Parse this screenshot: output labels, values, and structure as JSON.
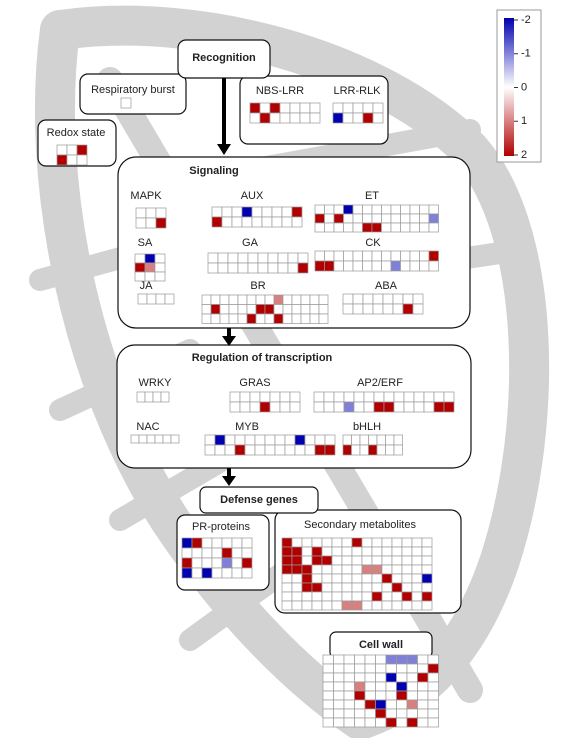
{
  "legend": {
    "ticks": [
      -2,
      -1,
      0,
      1,
      2
    ]
  },
  "headers": [
    "Recognition",
    "Signaling",
    "Regulation of transcription",
    "Defense genes",
    "Cell wall"
  ],
  "modules": [
    {
      "label": "Respiratory burst",
      "cells": [
        [
          0
        ]
      ]
    },
    {
      "label": "NBS-LRR",
      "cells": [
        [
          2,
          0,
          2,
          0,
          0,
          0,
          0
        ],
        [
          0,
          2,
          0,
          0,
          0,
          0,
          0
        ]
      ]
    },
    {
      "label": "LRR-RLK",
      "cells": [
        [
          0,
          0,
          0,
          0,
          0
        ],
        [
          -2,
          0,
          0,
          2,
          0
        ]
      ]
    },
    {
      "label": "Redox state",
      "cells": [
        [
          0,
          0,
          2
        ],
        [
          2,
          0,
          0
        ]
      ]
    },
    {
      "label": "MAPK",
      "cells": [
        [
          0,
          0,
          0
        ],
        [
          0,
          0,
          2
        ]
      ]
    },
    {
      "label": "AUX",
      "cells": [
        [
          0,
          0,
          0,
          -2,
          0,
          0,
          0,
          0,
          2
        ],
        [
          2,
          0,
          0,
          0,
          0,
          0,
          0,
          0,
          0
        ]
      ]
    },
    {
      "label": "ET",
      "cells": [
        [
          0,
          0,
          0,
          -2,
          0,
          0,
          0,
          0,
          0,
          0,
          0,
          0,
          0
        ],
        [
          2,
          0,
          2,
          0,
          0,
          0,
          0,
          0,
          0,
          0,
          0,
          0,
          -1
        ],
        [
          0,
          0,
          0,
          0,
          0,
          2,
          2,
          0,
          0,
          0,
          0,
          0,
          0
        ]
      ]
    },
    {
      "label": "SA",
      "cells": [
        [
          0,
          -2,
          0
        ],
        [
          2,
          1,
          0
        ],
        [
          0,
          0,
          0
        ]
      ]
    },
    {
      "label": "GA",
      "cells": [
        [
          0,
          0,
          0,
          0,
          0,
          0,
          0,
          0,
          0,
          0
        ],
        [
          0,
          0,
          0,
          0,
          0,
          0,
          0,
          0,
          0,
          2
        ]
      ]
    },
    {
      "label": "CK",
      "cells": [
        [
          0,
          0,
          0,
          0,
          0,
          0,
          0,
          0,
          0,
          0,
          0,
          0,
          2
        ],
        [
          2,
          2,
          0,
          0,
          0,
          0,
          0,
          0,
          -1,
          0,
          0,
          0,
          0
        ]
      ]
    },
    {
      "label": "JA",
      "cells": [
        [
          0,
          0,
          0,
          0
        ]
      ]
    },
    {
      "label": "BR",
      "cells": [
        [
          0,
          0,
          0,
          0,
          0,
          0,
          0,
          0,
          1,
          0,
          0,
          0,
          0,
          0
        ],
        [
          0,
          2,
          0,
          0,
          0,
          0,
          2,
          2,
          0,
          0,
          0,
          0,
          0,
          0
        ],
        [
          0,
          0,
          0,
          0,
          0,
          2,
          0,
          0,
          2,
          0,
          0,
          0,
          0,
          0
        ]
      ]
    },
    {
      "label": "ABA",
      "cells": [
        [
          0,
          0,
          0,
          0,
          0,
          0,
          0,
          0
        ],
        [
          0,
          0,
          0,
          0,
          0,
          0,
          2,
          0
        ]
      ]
    },
    {
      "label": "WRKY",
      "cells": [
        [
          0,
          0,
          0,
          0
        ]
      ]
    },
    {
      "label": "GRAS",
      "cells": [
        [
          0,
          0,
          0,
          0,
          0,
          0,
          0
        ],
        [
          0,
          0,
          0,
          2,
          0,
          0,
          0
        ]
      ]
    },
    {
      "label": "AP2/ERF",
      "cells": [
        [
          0,
          0,
          0,
          0,
          0,
          0,
          0,
          0,
          0,
          0,
          0,
          0,
          0,
          0
        ],
        [
          0,
          0,
          0,
          -1,
          0,
          0,
          2,
          2,
          0,
          0,
          0,
          0,
          2,
          2
        ]
      ]
    },
    {
      "label": "NAC",
      "cells": [
        [
          0,
          0,
          0,
          0,
          0,
          0
        ]
      ]
    },
    {
      "label": "MYB",
      "cells": [
        [
          0,
          -2,
          0,
          0,
          0,
          0,
          0,
          0,
          0,
          -2,
          0,
          0,
          0
        ],
        [
          0,
          0,
          0,
          2,
          0,
          0,
          0,
          0,
          0,
          0,
          0,
          2,
          2
        ]
      ]
    },
    {
      "label": "bHLH",
      "cells": [
        [
          0,
          0,
          0,
          0,
          0,
          0,
          0
        ],
        [
          2,
          0,
          0,
          2,
          0,
          0,
          0
        ]
      ]
    },
    {
      "label": "PR-proteins",
      "cells": [
        [
          -2,
          2,
          0,
          0,
          0,
          0,
          0
        ],
        [
          0,
          0,
          0,
          0,
          2,
          0,
          0
        ],
        [
          2,
          0,
          0,
          0,
          -1,
          0,
          2
        ],
        [
          -2,
          0,
          -2,
          0,
          0,
          0,
          0
        ]
      ]
    },
    {
      "label": "Secondary metabolites",
      "cells": [
        [
          2,
          0,
          0,
          0,
          0,
          0,
          0,
          2,
          0,
          0,
          0,
          0,
          0,
          0,
          0
        ],
        [
          2,
          2,
          0,
          2,
          0,
          0,
          0,
          0,
          0,
          0,
          0,
          0,
          0,
          0,
          0
        ],
        [
          2,
          2,
          0,
          2,
          2,
          0,
          0,
          0,
          0,
          0,
          0,
          0,
          0,
          0,
          0
        ],
        [
          2,
          2,
          2,
          0,
          0,
          0,
          0,
          0,
          1,
          1,
          0,
          0,
          0,
          0,
          0
        ],
        [
          0,
          0,
          2,
          0,
          0,
          0,
          0,
          0,
          0,
          0,
          2,
          0,
          0,
          0,
          -2
        ],
        [
          0,
          0,
          2,
          2,
          0,
          0,
          0,
          0,
          0,
          0,
          0,
          2,
          0,
          0,
          0
        ],
        [
          0,
          0,
          0,
          0,
          0,
          0,
          0,
          0,
          0,
          2,
          0,
          0,
          2,
          0,
          2
        ],
        [
          0,
          0,
          0,
          0,
          0,
          0,
          1,
          1,
          0,
          0,
          0,
          0,
          0,
          0,
          0
        ]
      ]
    },
    {
      "label": null,
      "cells": [
        [
          0,
          0,
          0,
          0,
          0,
          0,
          -1,
          -1,
          -1,
          0,
          0
        ],
        [
          0,
          0,
          0,
          0,
          0,
          0,
          0,
          0,
          0,
          0,
          2
        ],
        [
          0,
          0,
          0,
          0,
          0,
          0,
          -2,
          0,
          0,
          2,
          0
        ],
        [
          0,
          0,
          0,
          1,
          0,
          0,
          0,
          -2,
          0,
          0,
          0
        ],
        [
          0,
          0,
          0,
          2,
          0,
          0,
          0,
          2,
          0,
          0,
          0
        ],
        [
          0,
          0,
          0,
          0,
          2,
          -2,
          0,
          0,
          1,
          0,
          0
        ],
        [
          0,
          0,
          0,
          0,
          0,
          2,
          0,
          0,
          0,
          0,
          0
        ],
        [
          0,
          0,
          0,
          0,
          0,
          0,
          2,
          0,
          2,
          0,
          0
        ]
      ]
    }
  ]
}
